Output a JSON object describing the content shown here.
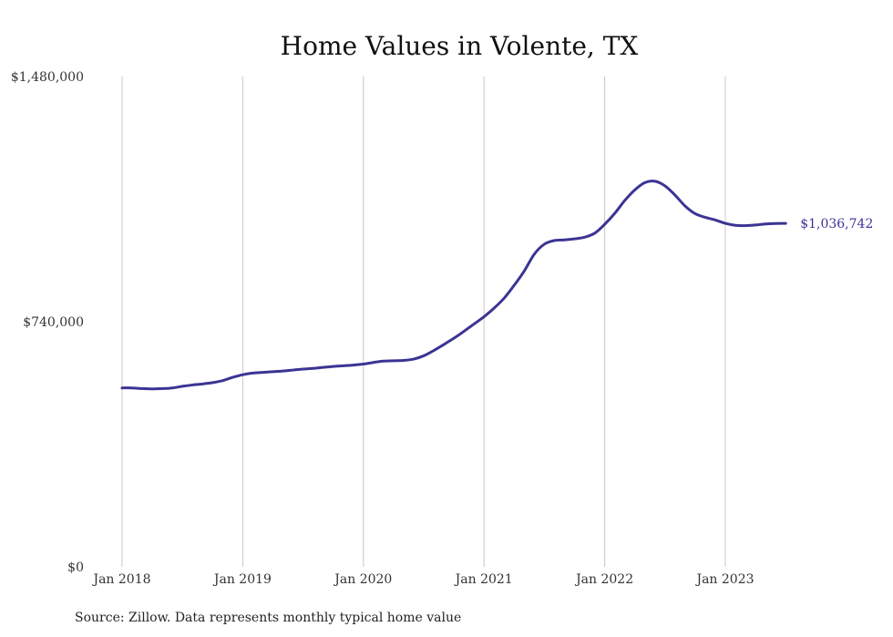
{
  "chart_data": {
    "type": "line",
    "title": "Home Values in Volente, TX",
    "xlabel": "",
    "ylabel": "",
    "source": "Source: Zillow. Data represents monthly typical home value",
    "ylim": [
      0,
      1480000
    ],
    "y_tick_labels": [
      "$1,480,000",
      "$740,000",
      "$0"
    ],
    "y_tick_values": [
      1480000,
      740000,
      0
    ],
    "x_tick_labels": [
      "Jan 2018",
      "Jan 2019",
      "Jan 2020",
      "Jan 2021",
      "Jan 2022",
      "Jan 2023"
    ],
    "x_start": "Jan 2018",
    "grid": "vertical",
    "line_color": "#3b3494",
    "end_label": "$1,036,742",
    "series": [
      {
        "values": [
          540000,
          540000,
          538000,
          537000,
          538000,
          540000,
          545000,
          549000,
          552000,
          556000,
          562000,
          572000,
          580000,
          585000,
          587000,
          589000,
          591000,
          594000,
          597000,
          599000,
          602000,
          605000,
          607000,
          609000,
          612000,
          617000,
          621000,
          622000,
          623000,
          627000,
          637000,
          653000,
          671000,
          690000,
          711000,
          733000,
          755000,
          781000,
          811000,
          850000,
          893000,
          944000,
          974000,
          985000,
          987000,
          990000,
          995000,
          1007000,
          1034000,
          1067000,
          1106000,
          1138000,
          1160000,
          1164000,
          1150000,
          1122000,
          1089000,
          1066000,
          1055000,
          1047000,
          1037000,
          1031000,
          1030000,
          1032000,
          1035000,
          1036500,
          1036742
        ]
      }
    ]
  }
}
